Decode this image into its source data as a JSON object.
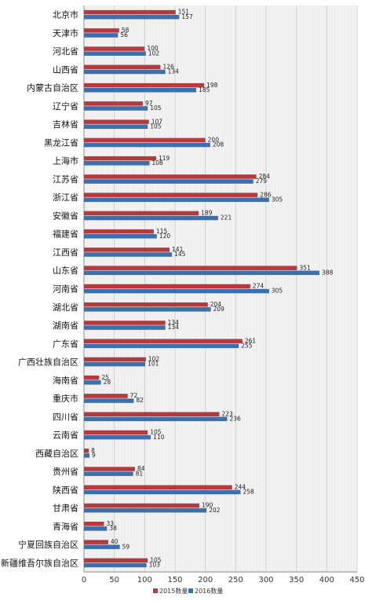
{
  "chart_data": {
    "type": "bar",
    "orientation": "horizontal",
    "categories": [
      "北京市",
      "天津市",
      "河北省",
      "山西省",
      "内蒙古自治区",
      "辽宁省",
      "吉林省",
      "黑龙江省",
      "上海市",
      "江苏省",
      "浙江省",
      "安徽省",
      "福建省",
      "江西省",
      "山东省",
      "河南省",
      "湖北省",
      "湖南省",
      "广东省",
      "广西壮族自治区",
      "海南省",
      "重庆市",
      "四川省",
      "云南省",
      "西藏自治区",
      "贵州省",
      "陕西省",
      "甘肃省",
      "青海省",
      "宁夏回族自治区",
      "新疆维吾尔族自治区"
    ],
    "series": [
      {
        "name": "2015数量",
        "color": "#b5393d",
        "values": [
          151,
          58,
          100,
          126,
          198,
          97,
          107,
          200,
          119,
          284,
          286,
          189,
          115,
          141,
          351,
          274,
          204,
          134,
          261,
          102,
          25,
          72,
          223,
          105,
          8,
          84,
          244,
          190,
          33,
          40,
          105
        ]
      },
      {
        "name": "2016数量",
        "color": "#3d6fad",
        "values": [
          157,
          56,
          102,
          134,
          185,
          105,
          105,
          208,
          108,
          279,
          305,
          221,
          120,
          145,
          388,
          305,
          209,
          134,
          255,
          101,
          28,
          82,
          236,
          110,
          9,
          81,
          258,
          202,
          38,
          59,
          103
        ]
      }
    ],
    "xlim": [
      0,
      450
    ],
    "xticks": [
      0,
      50,
      100,
      150,
      200,
      250,
      300,
      350,
      400,
      450
    ],
    "grid": true,
    "legend_position": "bottom"
  }
}
